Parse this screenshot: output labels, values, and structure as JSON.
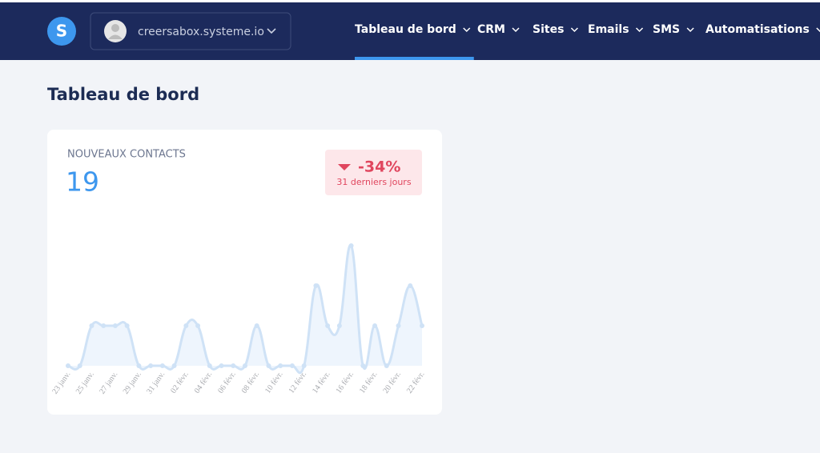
{
  "header": {
    "logo": "S",
    "account": "creersabox.systeme.io",
    "nav": [
      "Tableau de bord",
      "CRM",
      "Sites",
      "Emails",
      "SMS",
      "Automatisations"
    ],
    "active": 0
  },
  "page_title": "Tableau de bord",
  "card": {
    "title": "NOUVEAUX CONTACTS",
    "total": "19",
    "change": "-34%",
    "period": "31 derniers jours"
  },
  "chart_data": {
    "type": "line",
    "color": "#cfe2f6",
    "categories": [
      "23 janv.",
      null,
      "25 janv.",
      null,
      "27 janv.",
      null,
      "29 janv.",
      null,
      "31 janv.",
      null,
      "02 févr.",
      null,
      "04 févr.",
      null,
      "06 févr.",
      null,
      "08 févr.",
      null,
      "10 févr.",
      null,
      "12 févr.",
      null,
      "14 févr.",
      null,
      "16 févr.",
      null,
      "18 févr.",
      null,
      "20 févr.",
      null,
      "22 févr."
    ],
    "values": [
      0,
      0,
      1,
      1,
      1,
      1,
      0,
      0,
      0,
      0,
      1,
      1,
      0,
      0,
      0,
      0,
      1,
      0,
      0,
      0,
      0,
      2,
      1,
      1,
      3,
      0,
      1,
      0,
      1,
      2,
      1
    ],
    "ylim": [
      0,
      3
    ]
  }
}
